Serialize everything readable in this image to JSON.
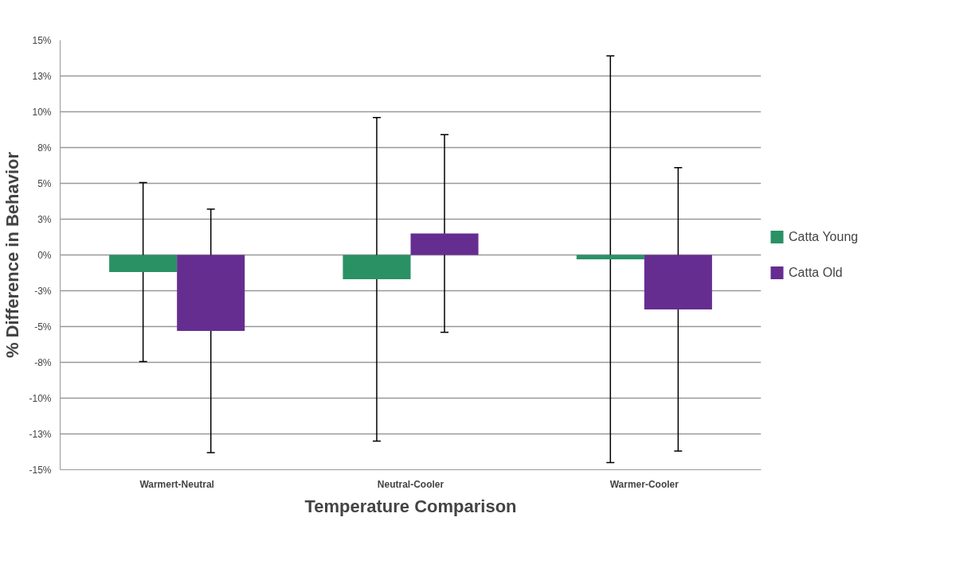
{
  "chart_data": {
    "type": "bar",
    "xlabel": "Temperature Comparison",
    "ylabel": "% Difference in Behavior",
    "categories": [
      "Warmert-Neutral",
      "Neutral-Cooler",
      "Warmer-Cooler"
    ],
    "series": [
      {
        "name": "Catta Young",
        "color": "#2a9165",
        "values": [
          -1.2,
          -1.7,
          -0.3
        ],
        "errors": [
          6.25,
          11.3,
          14.2
        ]
      },
      {
        "name": "Catta Old",
        "color": "#662d91",
        "values": [
          -5.3,
          1.5,
          -3.8
        ],
        "errors": [
          8.5,
          6.9,
          9.9
        ]
      }
    ],
    "ylim": [
      -15,
      15
    ],
    "yticks": [
      {
        "value": -15,
        "label": "-15%"
      },
      {
        "value": -12.5,
        "label": "-13%"
      },
      {
        "value": -10,
        "label": "-10%"
      },
      {
        "value": -7.5,
        "label": "-8%"
      },
      {
        "value": -5,
        "label": "-5%"
      },
      {
        "value": -2.5,
        "label": "-3%"
      },
      {
        "value": 0,
        "label": "0%"
      },
      {
        "value": 2.5,
        "label": "3%"
      },
      {
        "value": 5,
        "label": "5%"
      },
      {
        "value": 7.5,
        "label": "8%"
      },
      {
        "value": 10,
        "label": "10%"
      },
      {
        "value": 12.5,
        "label": "13%"
      },
      {
        "value": 15,
        "label": "15%"
      }
    ],
    "grid": "y",
    "legend": "right"
  }
}
